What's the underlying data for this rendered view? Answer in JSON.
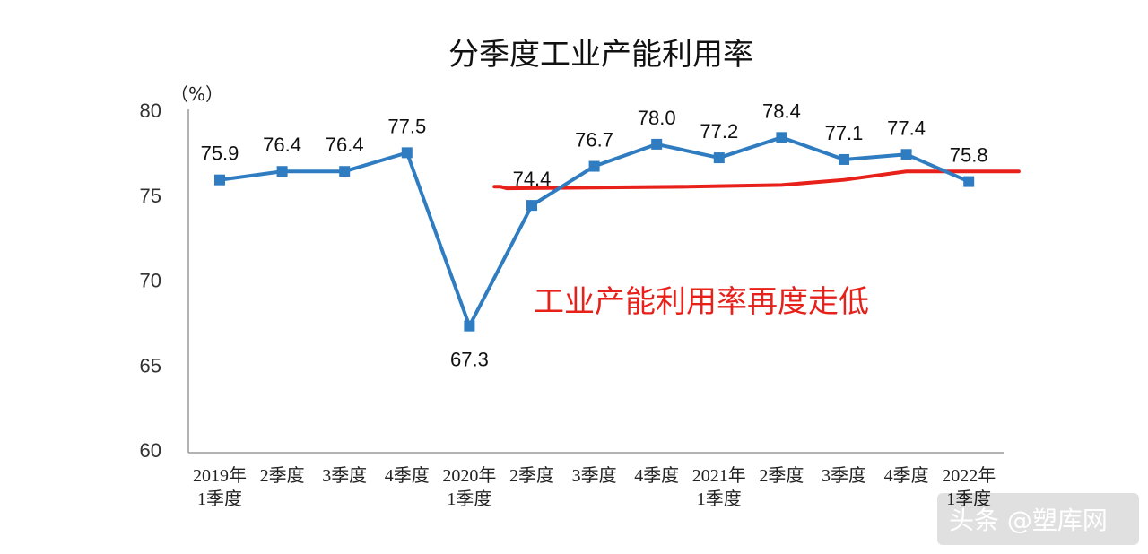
{
  "chart_data": {
    "type": "line",
    "title": "分季度工业产能利用率",
    "ylabel": "（%）",
    "xlabel": "",
    "ylim": [
      60,
      80
    ],
    "yticks": [
      60,
      65,
      70,
      75,
      80
    ],
    "grid": false,
    "categories": [
      [
        "2019年",
        "1季度"
      ],
      [
        "2季度"
      ],
      [
        "3季度"
      ],
      [
        "4季度"
      ],
      [
        "2020年",
        "1季度"
      ],
      [
        "2季度"
      ],
      [
        "3季度"
      ],
      [
        "4季度"
      ],
      [
        "2021年",
        "1季度"
      ],
      [
        "2季度"
      ],
      [
        "3季度"
      ],
      [
        "4季度"
      ],
      [
        "2022年",
        "1季度"
      ]
    ],
    "series": [
      {
        "values": [
          75.9,
          76.4,
          76.4,
          77.5,
          67.3,
          74.4,
          76.7,
          78.0,
          77.2,
          78.4,
          77.1,
          77.4,
          75.8
        ],
        "color": "#2f7cc1"
      }
    ],
    "annotation": {
      "text": "工业产能利用率再度走低",
      "color": "#e8201a",
      "trend_line": [
        [
          4.4,
          75.5
        ],
        [
          4.5,
          75.5
        ],
        [
          4.6,
          75.4
        ],
        [
          7.5,
          75.5
        ],
        [
          9.0,
          75.6
        ],
        [
          10.0,
          75.9
        ],
        [
          11.0,
          76.4
        ],
        [
          12.8,
          76.4
        ]
      ]
    }
  },
  "watermark": {
    "text": "头条 @塑库网"
  }
}
